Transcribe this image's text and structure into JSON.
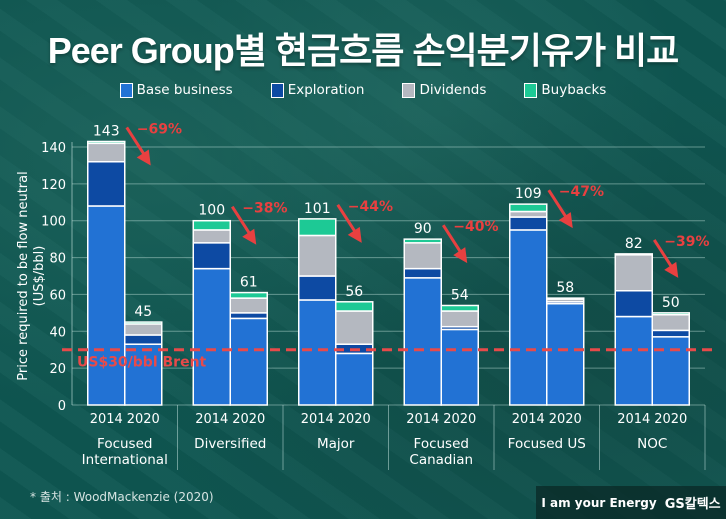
{
  "chart_data": {
    "type": "bar",
    "stacked": true,
    "title": "Peer Group별 현금흐름 손익분기유가 비교",
    "ylabel": "Price required to be flow neutral (US$/bbl)",
    "ylim": [
      0,
      140
    ],
    "yticks": [
      0,
      20,
      40,
      60,
      80,
      100,
      120,
      140
    ],
    "grid": true,
    "legend_position": "top",
    "groups": [
      "Focused International",
      "Diversified",
      "Major",
      "Focused Canadian",
      "Focused US",
      "NOC"
    ],
    "categories": [
      "2014",
      "2020"
    ],
    "series": [
      {
        "name": "Base business",
        "color": "#2272d4",
        "values": [
          [
            108,
            33
          ],
          [
            74,
            47
          ],
          [
            57,
            28
          ],
          [
            69,
            41
          ],
          [
            95,
            55
          ],
          [
            48,
            37
          ]
        ]
      },
      {
        "name": "Exploration",
        "color": "#0d4aa3",
        "values": [
          [
            24,
            5
          ],
          [
            14,
            3
          ],
          [
            13,
            5
          ],
          [
            5,
            1.5
          ],
          [
            7,
            1
          ],
          [
            14,
            3.5
          ]
        ]
      },
      {
        "name": "Dividends",
        "color": "#b4b8c0",
        "values": [
          [
            10,
            6
          ],
          [
            7,
            8
          ],
          [
            22,
            18
          ],
          [
            14,
            8.5
          ],
          [
            3,
            1.5
          ],
          [
            19.5,
            8.5
          ]
        ]
      },
      {
        "name": "Buybacks",
        "color": "#1dc995",
        "values": [
          [
            1,
            1
          ],
          [
            5,
            3
          ],
          [
            9,
            5
          ],
          [
            2,
            3
          ],
          [
            4,
            0.5
          ],
          [
            0.5,
            1
          ]
        ]
      }
    ],
    "totals": [
      [
        "143",
        "45"
      ],
      [
        "100",
        "61"
      ],
      [
        "101",
        "56"
      ],
      [
        "90",
        "54"
      ],
      [
        "109",
        "58"
      ],
      [
        "82",
        "50"
      ]
    ],
    "changes": [
      "-69%",
      "-38%",
      "-44%",
      "-40%",
      "-47%",
      "-39%"
    ],
    "reference_line": {
      "value": 30,
      "label": "US$30/bbl Brent",
      "color": "#e84a4a"
    }
  },
  "legend": [
    "Base business",
    "Exploration",
    "Dividends",
    "Buybacks"
  ],
  "source": "*  출처 : WoodMackenzie (2020)",
  "brand": {
    "slogan": "I am your Energy",
    "logo": "GS칼텍스"
  }
}
